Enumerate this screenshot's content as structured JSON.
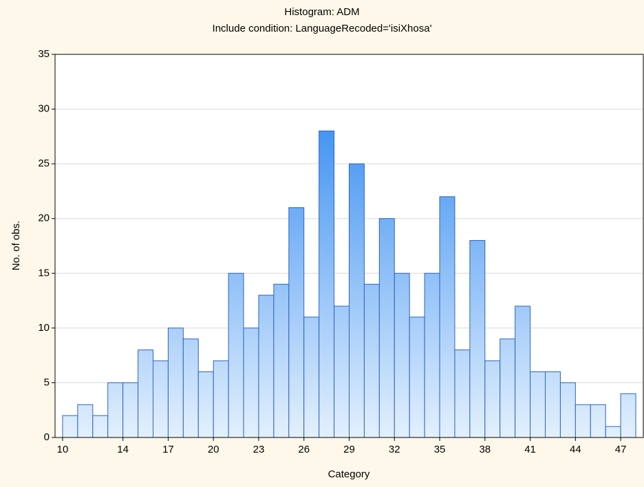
{
  "chart_data": {
    "type": "histogram",
    "title": "Histogram: ADM",
    "subtitle": "Include condition: LanguageRecoded='isiXhosa'",
    "x_label": "Category",
    "y_label": "No. of obs.",
    "bins": [
      10,
      11,
      12,
      13,
      14,
      15,
      16,
      17,
      18,
      19,
      20,
      21,
      22,
      23,
      24,
      25,
      26,
      27,
      28,
      29,
      30,
      31,
      32,
      33,
      34,
      35,
      36,
      37,
      38,
      39,
      40,
      41,
      42,
      43,
      44,
      45,
      46,
      47,
      48
    ],
    "values": [
      2,
      3,
      2,
      5,
      5,
      8,
      7,
      10,
      9,
      6,
      7,
      15,
      10,
      13,
      14,
      21,
      11,
      28,
      12,
      25,
      14,
      20,
      15,
      11,
      15,
      22,
      8,
      18,
      7,
      9,
      12,
      6,
      6,
      5,
      3,
      3,
      1,
      4
    ],
    "color": "#3d8ef0",
    "xlim": [
      9.5,
      48.5
    ],
    "xticks": [
      10,
      14,
      17,
      20,
      23,
      26,
      29,
      32,
      35,
      38,
      41,
      44,
      47
    ],
    "ylim": [
      0,
      35
    ],
    "yticks": [
      0,
      5,
      10,
      15,
      20,
      25,
      30,
      35
    ],
    "grid": true
  }
}
